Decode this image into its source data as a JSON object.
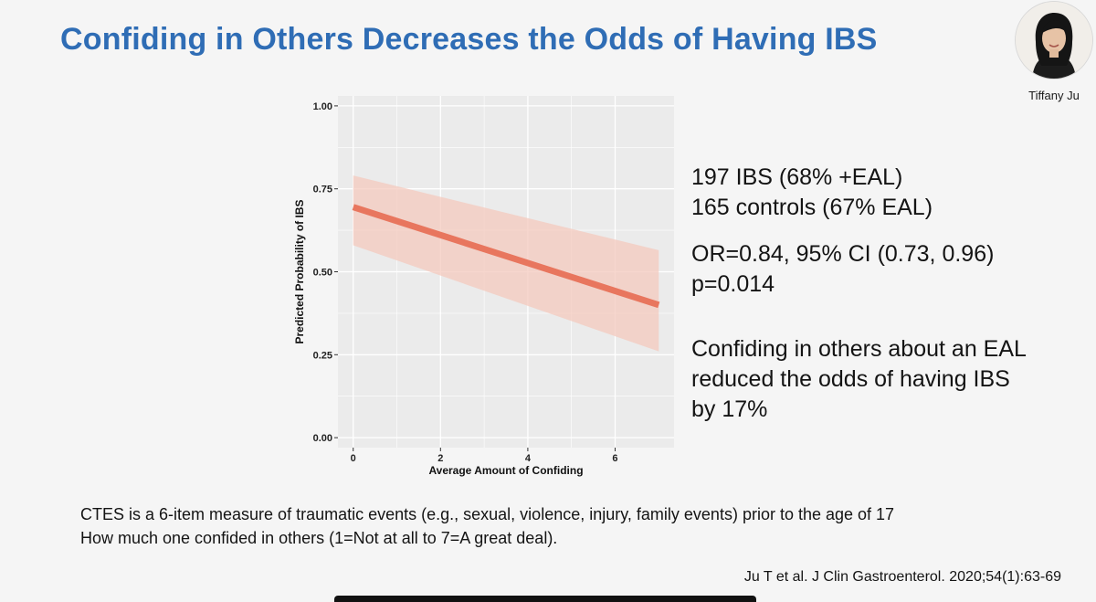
{
  "slide": {
    "title": "Confiding in Others Decreases the Odds of Having IBS"
  },
  "presenter": {
    "name": "Tiffany Ju",
    "icon": "presenter-video-thumbnail"
  },
  "stats": {
    "line1": "197 IBS (68% +EAL)",
    "line2": "165 controls (67% EAL)",
    "line3": "OR=0.84, 95% CI (0.73, 0.96)",
    "line4": "p=0.014",
    "line5": "Confiding in others about an EAL",
    "line6": "reduced the odds of having IBS",
    "line7": "by 17%"
  },
  "notes": {
    "line1": "CTES is a 6-item measure of traumatic events (e.g., sexual, violence, injury, family events) prior to the age of 17",
    "line2": "How much one confided in others (1=Not at all to 7=A great deal)."
  },
  "citation": "Ju T et al. J Clin Gastroenterol. 2020;54(1):63-69",
  "colors": {
    "title": "#2f6db5",
    "line": "#e8765e",
    "band": "#f4c9bd",
    "panel": "#ebebeb",
    "grid": "#ffffff"
  },
  "chart_data": {
    "type": "line",
    "xlabel": "Average Amount of Confiding",
    "ylabel": "Predicted Probability of IBS",
    "xlim": [
      -0.35,
      7.35
    ],
    "ylim": [
      -0.03,
      1.03
    ],
    "xticks": [
      0,
      2,
      4,
      6
    ],
    "xtick_labels": [
      "0",
      "2",
      "4",
      "6"
    ],
    "yticks": [
      0,
      0.25,
      0.5,
      0.75,
      1
    ],
    "ytick_labels": [
      "0.00",
      "0.25",
      "0.50",
      "0.75",
      "1.00"
    ],
    "grid": true,
    "legend": "none",
    "series": [
      {
        "x": [
          0,
          7
        ],
        "y": [
          0.695,
          0.4
        ],
        "ci_lower": [
          0.58,
          0.26
        ],
        "ci_upper": [
          0.79,
          0.565
        ]
      }
    ]
  }
}
